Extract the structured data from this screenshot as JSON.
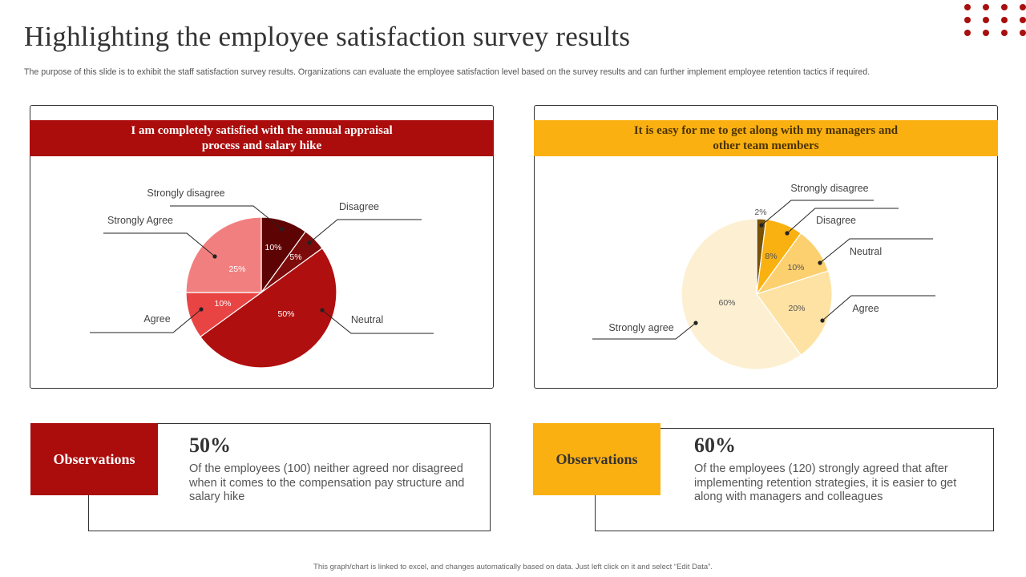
{
  "title": "Highlighting the employee satisfaction survey results",
  "subtitle": "The purpose of this slide is to exhibit the staff satisfaction survey results. Organizations can evaluate the employee satisfaction level based on the survey results and can further implement employee retention tactics if required.",
  "footer": "This graph/chart is linked to excel, and changes automatically based on data. Just left click on it and select “Edit Data”.",
  "colors": {
    "red": "#ab0c0c",
    "yellow": "#fbb012"
  },
  "chart_data": [
    {
      "type": "pie",
      "title": "I am completely satisfied with the annual appraisal process and salary hike",
      "categories": [
        "Strongly disagree",
        "Disagree",
        "Neutral",
        "Agree",
        "Strongly Agree"
      ],
      "values": [
        10,
        5,
        50,
        10,
        25
      ],
      "data_labels": [
        "10%",
        "5%",
        "50%",
        "10%",
        "25%"
      ],
      "colors": [
        "#5e0303",
        "#7d0b0b",
        "#b00f0f",
        "#e94444",
        "#f27f7f"
      ],
      "label_color": "#ffffff"
    },
    {
      "type": "pie",
      "title": "It is easy for me to get along with  my managers and other team members",
      "categories": [
        "Strongly disagree",
        "Disagree",
        "Neutral",
        "Agree",
        "Strongly agree"
      ],
      "values": [
        2,
        8,
        10,
        20,
        60
      ],
      "data_labels": [
        "2%",
        "8%",
        "10%",
        "20%",
        "60%"
      ],
      "colors": [
        "#7a5204",
        "#f9b112",
        "#fcd06f",
        "#fde2a3",
        "#fdf0d2"
      ],
      "label_color": "#555555"
    }
  ],
  "observations": [
    {
      "label": "Observations",
      "value": "50%",
      "text": "Of the employees (100) neither agreed nor disagreed when it comes to the compensation pay structure and salary hike"
    },
    {
      "label": "Observations",
      "value": "60%",
      "text": "Of the employees (120) strongly agreed that after implementing retention strategies, it is easier to get along with managers and colleagues"
    }
  ]
}
